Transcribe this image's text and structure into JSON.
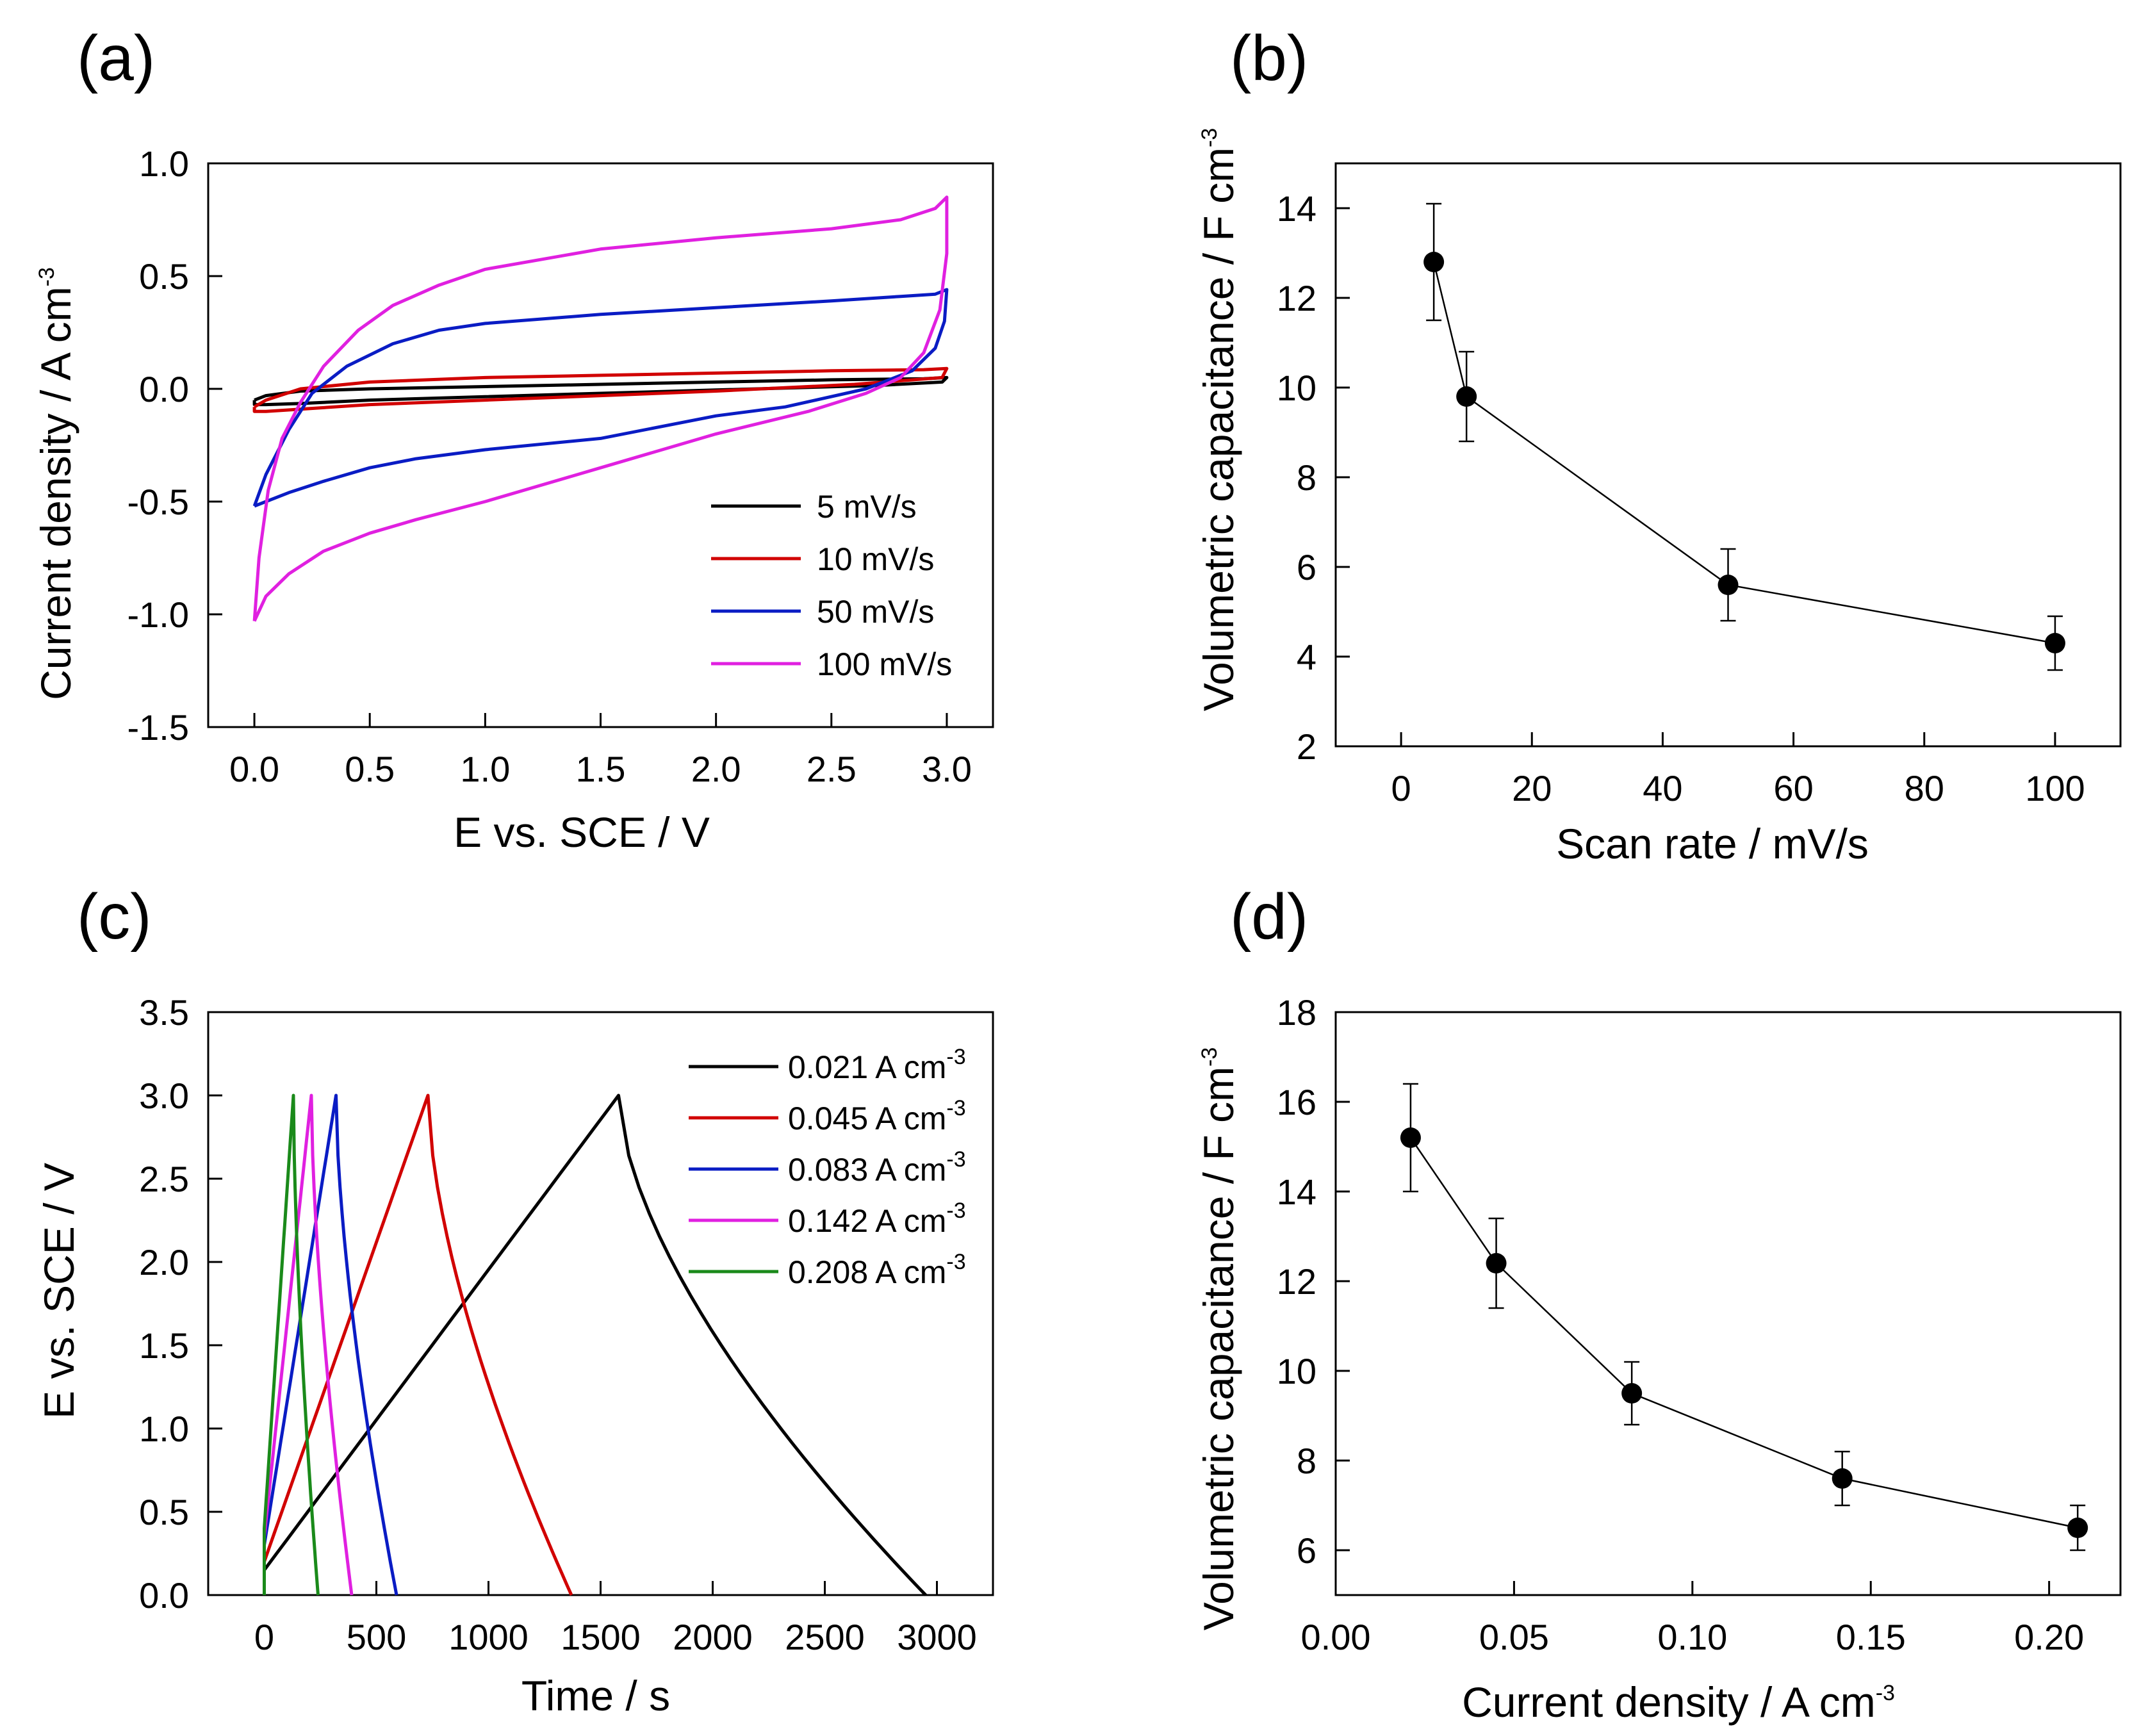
{
  "chart_data": [
    {
      "id": "a",
      "panel_label": "(a)",
      "type": "line",
      "title": "",
      "xlabel": "E vs. SCE / V",
      "ylabel": "Current density / A cm",
      "ylabel_sup": "-3",
      "xlim": [
        -0.2,
        3.2
      ],
      "ylim": [
        -1.5,
        1.0
      ],
      "xticks": [
        0.0,
        0.5,
        1.0,
        1.5,
        2.0,
        2.5,
        3.0
      ],
      "xtick_labels": [
        "0.0",
        "0.5",
        "1.0",
        "1.5",
        "2.0",
        "2.5",
        "3.0"
      ],
      "yticks": [
        -1.5,
        -1.0,
        -0.5,
        0.0,
        0.5,
        1.0
      ],
      "ytick_labels": [
        "-1.5",
        "-1.0",
        "-0.5",
        "0.0",
        "0.5",
        "1.0"
      ],
      "legend_position": "lower-right",
      "series": [
        {
          "name": "5 mV/s",
          "color": "#000000",
          "anodic": [
            [
              0,
              -0.05
            ],
            [
              0.05,
              -0.03
            ],
            [
              0.2,
              -0.01
            ],
            [
              0.5,
              0.0
            ],
            [
              1.0,
              0.01
            ],
            [
              1.5,
              0.02
            ],
            [
              2.0,
              0.03
            ],
            [
              2.5,
              0.04
            ],
            [
              2.9,
              0.045
            ],
            [
              3.0,
              0.05
            ]
          ],
          "cathodic": [
            [
              3.0,
              0.05
            ],
            [
              2.98,
              0.03
            ],
            [
              2.7,
              0.015
            ],
            [
              2.0,
              -0.005
            ],
            [
              1.5,
              -0.02
            ],
            [
              1.0,
              -0.035
            ],
            [
              0.5,
              -0.05
            ],
            [
              0.2,
              -0.065
            ],
            [
              0.05,
              -0.07
            ],
            [
              0,
              -0.07
            ],
            [
              0,
              -0.05
            ]
          ]
        },
        {
          "name": "10 mV/s",
          "color": "#d10000",
          "anodic": [
            [
              0,
              -0.08
            ],
            [
              0.05,
              -0.05
            ],
            [
              0.2,
              0.0
            ],
            [
              0.5,
              0.03
            ],
            [
              1.0,
              0.05
            ],
            [
              1.5,
              0.06
            ],
            [
              2.0,
              0.07
            ],
            [
              2.5,
              0.08
            ],
            [
              2.9,
              0.085
            ],
            [
              3.0,
              0.09
            ]
          ],
          "cathodic": [
            [
              3.0,
              0.09
            ],
            [
              2.98,
              0.05
            ],
            [
              2.6,
              0.02
            ],
            [
              2.0,
              -0.01
            ],
            [
              1.5,
              -0.03
            ],
            [
              1.0,
              -0.05
            ],
            [
              0.5,
              -0.07
            ],
            [
              0.2,
              -0.09
            ],
            [
              0.05,
              -0.1
            ],
            [
              0,
              -0.1
            ],
            [
              0,
              -0.08
            ]
          ]
        },
        {
          "name": "50 mV/s",
          "color": "#0a1cc4",
          "anodic": [
            [
              0,
              -0.52
            ],
            [
              0.05,
              -0.38
            ],
            [
              0.15,
              -0.18
            ],
            [
              0.25,
              -0.02
            ],
            [
              0.4,
              0.1
            ],
            [
              0.6,
              0.2
            ],
            [
              0.8,
              0.26
            ],
            [
              1.0,
              0.29
            ],
            [
              1.5,
              0.33
            ],
            [
              2.0,
              0.36
            ],
            [
              2.5,
              0.39
            ],
            [
              2.8,
              0.41
            ],
            [
              2.95,
              0.42
            ],
            [
              3.0,
              0.44
            ]
          ],
          "cathodic": [
            [
              3.0,
              0.44
            ],
            [
              2.99,
              0.3
            ],
            [
              2.95,
              0.18
            ],
            [
              2.85,
              0.08
            ],
            [
              2.65,
              0.0
            ],
            [
              2.3,
              -0.08
            ],
            [
              2.0,
              -0.12
            ],
            [
              1.5,
              -0.22
            ],
            [
              1.0,
              -0.27
            ],
            [
              0.7,
              -0.31
            ],
            [
              0.5,
              -0.35
            ],
            [
              0.3,
              -0.41
            ],
            [
              0.15,
              -0.46
            ],
            [
              0.05,
              -0.5
            ],
            [
              0,
              -0.52
            ]
          ]
        },
        {
          "name": "100 mV/s",
          "color": "#e020e0",
          "anodic": [
            [
              0,
              -1.03
            ],
            [
              0.02,
              -0.75
            ],
            [
              0.06,
              -0.45
            ],
            [
              0.12,
              -0.22
            ],
            [
              0.2,
              -0.06
            ],
            [
              0.3,
              0.1
            ],
            [
              0.45,
              0.26
            ],
            [
              0.6,
              0.37
            ],
            [
              0.8,
              0.46
            ],
            [
              1.0,
              0.53
            ],
            [
              1.5,
              0.62
            ],
            [
              2.0,
              0.67
            ],
            [
              2.5,
              0.71
            ],
            [
              2.8,
              0.75
            ],
            [
              2.95,
              0.8
            ],
            [
              3.0,
              0.85
            ]
          ],
          "cathodic": [
            [
              3.0,
              0.85
            ],
            [
              3.0,
              0.6
            ],
            [
              2.97,
              0.35
            ],
            [
              2.9,
              0.16
            ],
            [
              2.8,
              0.05
            ],
            [
              2.65,
              -0.02
            ],
            [
              2.4,
              -0.1
            ],
            [
              2.0,
              -0.2
            ],
            [
              1.5,
              -0.35
            ],
            [
              1.0,
              -0.5
            ],
            [
              0.7,
              -0.58
            ],
            [
              0.5,
              -0.64
            ],
            [
              0.3,
              -0.72
            ],
            [
              0.15,
              -0.82
            ],
            [
              0.05,
              -0.92
            ],
            [
              0,
              -1.03
            ]
          ]
        }
      ]
    },
    {
      "id": "b",
      "panel_label": "(b)",
      "type": "scatter",
      "title": "",
      "xlabel": "Scan rate / mV/s",
      "ylabel": "Volumetric capacitance / F cm",
      "ylabel_sup": "-3",
      "xlim": [
        -10,
        110
      ],
      "ylim": [
        2,
        15
      ],
      "xticks": [
        0,
        20,
        40,
        60,
        80,
        100
      ],
      "xtick_labels": [
        "0",
        "20",
        "40",
        "60",
        "80",
        "100"
      ],
      "yticks": [
        2,
        4,
        6,
        8,
        10,
        12,
        14
      ],
      "ytick_labels": [
        "2",
        "4",
        "6",
        "8",
        "10",
        "12",
        "14"
      ],
      "x": [
        5,
        10,
        50,
        100
      ],
      "values": [
        12.8,
        9.8,
        5.6,
        4.3
      ],
      "errors": [
        1.3,
        1.0,
        0.8,
        0.6
      ]
    },
    {
      "id": "c",
      "panel_label": "(c)",
      "type": "line",
      "title": "",
      "xlabel": "Time / s",
      "ylabel": "E vs. SCE / V",
      "xlim": [
        -250,
        3250
      ],
      "ylim": [
        0,
        3.5
      ],
      "xticks": [
        0,
        500,
        1000,
        1500,
        2000,
        2500,
        3000
      ],
      "xtick_labels": [
        "0",
        "500",
        "1000",
        "1500",
        "2000",
        "2500",
        "3000"
      ],
      "yticks": [
        0.0,
        0.5,
        1.0,
        1.5,
        2.0,
        2.5,
        3.0,
        3.5
      ],
      "ytick_labels": [
        "0.0",
        "0.5",
        "1.0",
        "1.5",
        "2.0",
        "2.5",
        "3.0",
        "3.5"
      ],
      "legend_position": "top-right",
      "series": [
        {
          "name": "0.021 A cm",
          "sup": "-3",
          "color": "#000000",
          "t_peak": 1580,
          "t_end": 2950,
          "v_start": 0.15
        },
        {
          "name": "0.045 A cm",
          "sup": "-3",
          "color": "#d10000",
          "t_peak": 730,
          "t_end": 1370,
          "v_start": 0.2
        },
        {
          "name": "0.083 A cm",
          "sup": "-3",
          "color": "#0a1cc4",
          "t_peak": 320,
          "t_end": 590,
          "v_start": 0.3
        },
        {
          "name": "0.142 A cm",
          "sup": "-3",
          "color": "#e020e0",
          "t_peak": 210,
          "t_end": 390,
          "v_start": 0.35
        },
        {
          "name": "0.208 A cm",
          "sup": "-3",
          "color": "#1a8a1a",
          "t_peak": 130,
          "t_end": 240,
          "v_start": 0.4
        }
      ]
    },
    {
      "id": "d",
      "panel_label": "(d)",
      "type": "scatter",
      "title": "",
      "xlabel": "Current density / A cm",
      "xlabel_sup": "-3",
      "ylabel": "Volumetric capacitance / F cm",
      "ylabel_sup": "-3",
      "xlim": [
        0.0,
        0.22
      ],
      "ylim": [
        5,
        18
      ],
      "xticks": [
        0.0,
        0.05,
        0.1,
        0.15,
        0.2
      ],
      "xtick_labels": [
        "0.00",
        "0.05",
        "0.10",
        "0.15",
        "0.20"
      ],
      "yticks": [
        6,
        8,
        10,
        12,
        14,
        16,
        18
      ],
      "ytick_labels": [
        "6",
        "8",
        "10",
        "12",
        "14",
        "16",
        "18"
      ],
      "x": [
        0.021,
        0.045,
        0.083,
        0.142,
        0.208
      ],
      "values": [
        15.2,
        12.4,
        9.5,
        7.6,
        6.5
      ],
      "errors": [
        1.2,
        1.0,
        0.7,
        0.6,
        0.5
      ]
    }
  ]
}
